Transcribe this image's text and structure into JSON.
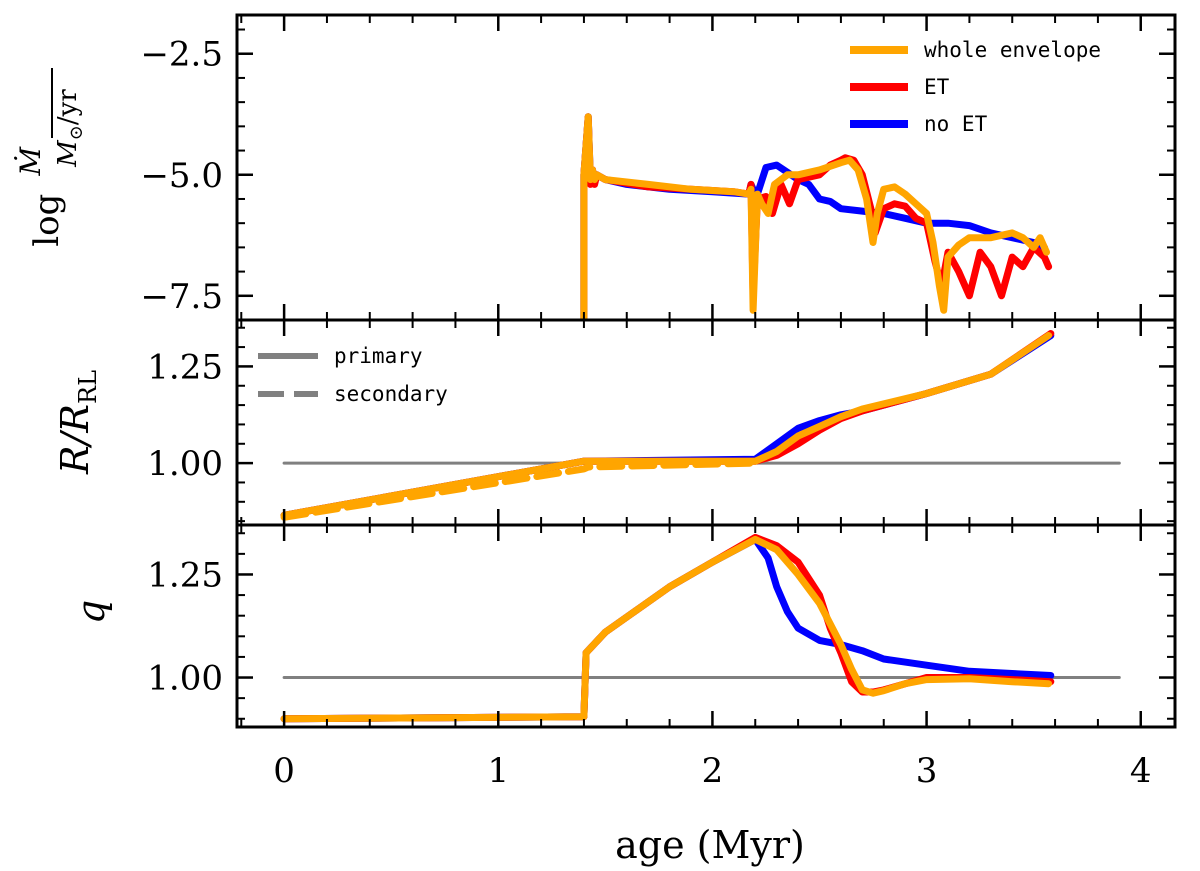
{
  "chart_data": {
    "type": "line",
    "xlabel": "age (Myr)",
    "xlim": [
      -0.22,
      4.16
    ],
    "xticks": [
      0,
      1,
      2,
      3,
      4
    ],
    "xticklabels": [
      "0",
      "1",
      "2",
      "3",
      "4"
    ],
    "colors": {
      "whole_envelope": "#FFA500",
      "ET": "#FF0000",
      "noET": "#0000FF",
      "reference": "#808080"
    },
    "panels": [
      {
        "id": "mdot",
        "ylabel": "log Ṁ/(M⊙/yr)",
        "ylim": [
          -8.0,
          -1.7
        ],
        "yticks": [
          -2.5,
          -5.0,
          -7.5
        ],
        "yticklabels": [
          "−2.5",
          "−5.0",
          "−7.5"
        ],
        "legend": [
          {
            "label": "whole envelope",
            "color": "#FFA500",
            "dash": "solid"
          },
          {
            "label": "ET",
            "color": "#FF0000",
            "dash": "solid"
          },
          {
            "label": "no ET",
            "color": "#0000FF",
            "dash": "solid"
          }
        ],
        "series": [
          {
            "name": "no ET",
            "color": "#0000FF",
            "dash": "solid",
            "x": [
              1.4,
              1.4,
              1.42,
              1.43,
              1.44,
              1.45,
              1.46,
              1.5,
              1.6,
              1.8,
              2.0,
              2.17,
              2.18,
              2.19,
              2.21,
              2.25,
              2.3,
              2.35,
              2.4,
              2.45,
              2.5,
              2.55,
              2.6,
              2.7,
              2.8,
              2.9,
              3.0,
              3.1,
              3.2,
              3.3,
              3.4,
              3.5,
              3.55
            ],
            "y": [
              -8.0,
              -5.0,
              -3.8,
              -5.1,
              -4.9,
              -5.1,
              -5.0,
              -5.1,
              -5.2,
              -5.3,
              -5.35,
              -5.4,
              -5.2,
              -5.3,
              -5.4,
              -4.85,
              -4.8,
              -4.95,
              -5.1,
              -5.2,
              -5.5,
              -5.55,
              -5.7,
              -5.75,
              -5.8,
              -5.9,
              -6.0,
              -6.0,
              -6.05,
              -6.2,
              -6.3,
              -6.4,
              -6.5
            ]
          },
          {
            "name": "ET",
            "color": "#FF0000",
            "dash": "solid",
            "x": [
              1.4,
              1.4,
              1.42,
              1.43,
              1.44,
              1.45,
              1.46,
              1.5,
              1.7,
              1.9,
              2.1,
              2.17,
              2.18,
              2.19,
              2.21,
              2.25,
              2.28,
              2.32,
              2.36,
              2.4,
              2.5,
              2.55,
              2.6,
              2.62,
              2.66,
              2.7,
              2.74,
              2.76,
              2.8,
              2.85,
              2.9,
              2.95,
              3.0,
              3.04,
              3.07,
              3.1,
              3.15,
              3.2,
              3.25,
              3.3,
              3.35,
              3.4,
              3.45,
              3.5,
              3.55,
              3.57
            ],
            "y": [
              -8.0,
              -5.0,
              -3.8,
              -5.2,
              -4.9,
              -5.2,
              -5.0,
              -5.1,
              -5.25,
              -5.3,
              -5.35,
              -5.4,
              -5.2,
              -7.5,
              -5.5,
              -5.45,
              -5.8,
              -5.2,
              -5.6,
              -5.1,
              -5.0,
              -4.8,
              -4.7,
              -4.65,
              -4.7,
              -5.0,
              -5.7,
              -6.2,
              -5.7,
              -5.6,
              -5.65,
              -5.9,
              -6.0,
              -6.8,
              -7.3,
              -6.6,
              -7.0,
              -7.5,
              -6.6,
              -6.9,
              -7.5,
              -6.7,
              -6.9,
              -6.5,
              -6.7,
              -6.9
            ]
          },
          {
            "name": "whole envelope",
            "color": "#FFA500",
            "dash": "solid",
            "x": [
              1.4,
              1.4,
              1.42,
              1.43,
              1.44,
              1.45,
              1.46,
              1.5,
              1.7,
              1.9,
              2.1,
              2.17,
              2.18,
              2.19,
              2.21,
              2.23,
              2.26,
              2.29,
              2.35,
              2.4,
              2.5,
              2.6,
              2.64,
              2.68,
              2.72,
              2.75,
              2.77,
              2.8,
              2.85,
              2.9,
              2.95,
              3.0,
              3.03,
              3.06,
              3.08,
              3.1,
              3.15,
              3.2,
              3.3,
              3.35,
              3.4,
              3.45,
              3.5,
              3.53,
              3.56
            ],
            "y": [
              -8.0,
              -5.0,
              -3.8,
              -5.1,
              -4.9,
              -5.1,
              -5.0,
              -5.1,
              -5.2,
              -5.3,
              -5.35,
              -5.4,
              -5.3,
              -7.8,
              -5.4,
              -5.6,
              -5.8,
              -5.2,
              -5.0,
              -5.0,
              -4.9,
              -4.75,
              -4.7,
              -4.9,
              -5.5,
              -6.4,
              -5.8,
              -5.3,
              -5.25,
              -5.4,
              -5.6,
              -5.8,
              -6.4,
              -7.3,
              -7.8,
              -6.7,
              -6.45,
              -6.3,
              -6.3,
              -6.25,
              -6.2,
              -6.3,
              -6.5,
              -6.3,
              -6.6
            ]
          }
        ]
      },
      {
        "id": "radius",
        "ylabel": "R/R_RL",
        "ylim": [
          0.84,
          1.37
        ],
        "yticks": [
          1.0,
          1.25
        ],
        "yticklabels": [
          "1.00",
          "1.25"
        ],
        "legend": [
          {
            "label": "primary",
            "color": "#808080",
            "dash": "solid"
          },
          {
            "label": "secondary",
            "color": "#808080",
            "dash": "dashed"
          }
        ],
        "series": [
          {
            "name": "unity",
            "color": "#808080",
            "dash": "solid",
            "x": [
              0.0,
              3.9
            ],
            "y": [
              1.0,
              1.0
            ]
          },
          {
            "name": "no ET primary",
            "color": "#0000FF",
            "dash": "solid",
            "x": [
              0.0,
              1.4,
              2.2,
              2.3,
              2.4,
              2.5,
              2.6,
              2.7,
              3.0,
              3.3,
              3.58
            ],
            "y": [
              0.865,
              1.005,
              1.01,
              1.05,
              1.09,
              1.11,
              1.125,
              1.135,
              1.18,
              1.23,
              1.33
            ]
          },
          {
            "name": "ET primary",
            "color": "#FF0000",
            "dash": "solid",
            "x": [
              0.0,
              1.4,
              2.2,
              2.3,
              2.4,
              2.5,
              2.6,
              2.7,
              3.0,
              3.3,
              3.58
            ],
            "y": [
              0.865,
              1.005,
              1.005,
              1.02,
              1.05,
              1.085,
              1.115,
              1.135,
              1.18,
              1.23,
              1.335
            ]
          },
          {
            "name": "whole envelope primary",
            "color": "#FFA500",
            "dash": "solid",
            "x": [
              0.0,
              1.4,
              2.2,
              2.3,
              2.4,
              2.5,
              2.6,
              2.7,
              3.0,
              3.3,
              3.57
            ],
            "y": [
              0.865,
              1.005,
              1.005,
              1.03,
              1.07,
              1.095,
              1.12,
              1.14,
              1.18,
              1.23,
              1.33
            ]
          },
          {
            "name": "whole envelope secondary",
            "color": "#FFA500",
            "dash": "dashed",
            "x": [
              0.0,
              1.4,
              1.42,
              2.2
            ],
            "y": [
              0.86,
              0.985,
              0.99,
              1.0
            ]
          }
        ]
      },
      {
        "id": "q",
        "ylabel": "q",
        "ylim": [
          0.88,
          1.37
        ],
        "yticks": [
          1.0,
          1.25
        ],
        "yticklabels": [
          "1.00",
          "1.25"
        ],
        "series": [
          {
            "name": "unity",
            "color": "#808080",
            "dash": "solid",
            "x": [
              0.0,
              3.9
            ],
            "y": [
              1.0,
              1.0
            ]
          },
          {
            "name": "no ET",
            "color": "#0000FF",
            "dash": "solid",
            "x": [
              0.0,
              1.4,
              1.41,
              1.5,
              1.8,
              2.0,
              2.2,
              2.26,
              2.3,
              2.35,
              2.4,
              2.5,
              2.6,
              2.7,
              2.8,
              3.0,
              3.2,
              3.58
            ],
            "y": [
              0.9,
              0.905,
              1.06,
              1.11,
              1.22,
              1.28,
              1.335,
              1.29,
              1.22,
              1.16,
              1.12,
              1.09,
              1.08,
              1.065,
              1.045,
              1.03,
              1.015,
              1.005
            ]
          },
          {
            "name": "ET",
            "color": "#FF0000",
            "dash": "solid",
            "x": [
              0.0,
              1.4,
              1.41,
              1.5,
              1.8,
              2.0,
              2.2,
              2.3,
              2.4,
              2.5,
              2.55,
              2.6,
              2.65,
              2.7,
              2.75,
              2.8,
              2.9,
              3.0,
              3.2,
              3.4,
              3.58
            ],
            "y": [
              0.9,
              0.905,
              1.06,
              1.11,
              1.22,
              1.28,
              1.34,
              1.32,
              1.28,
              1.2,
              1.12,
              1.06,
              0.99,
              0.965,
              0.965,
              0.97,
              0.985,
              1.0,
              1.0,
              0.995,
              0.99
            ]
          },
          {
            "name": "whole envelope",
            "color": "#FFA500",
            "dash": "solid",
            "x": [
              0.0,
              1.4,
              1.41,
              1.5,
              1.8,
              2.0,
              2.2,
              2.3,
              2.4,
              2.5,
              2.55,
              2.6,
              2.65,
              2.7,
              2.75,
              2.8,
              2.9,
              3.0,
              3.2,
              3.4,
              3.57
            ],
            "y": [
              0.9,
              0.905,
              1.06,
              1.11,
              1.22,
              1.28,
              1.335,
              1.31,
              1.25,
              1.18,
              1.13,
              1.08,
              1.02,
              0.97,
              0.962,
              0.968,
              0.985,
              0.995,
              0.997,
              0.99,
              0.985
            ]
          }
        ]
      }
    ]
  }
}
